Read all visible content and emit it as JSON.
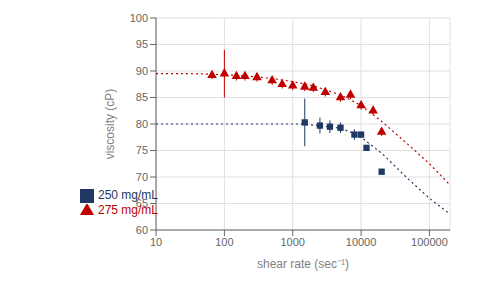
{
  "chart_data": {
    "type": "scatter",
    "xlabel": "shear rate (sec⁻¹)",
    "ylabel": "viscosity (cP)",
    "log": "x",
    "grid": true,
    "legend": "lower left",
    "xlim": [
      10,
      200000
    ],
    "ylim": [
      60,
      100
    ],
    "xticks": [
      10,
      100,
      1000,
      10000,
      100000
    ],
    "yticks": [
      60,
      65,
      70,
      75,
      80,
      85,
      90,
      95,
      100
    ],
    "series": [
      {
        "type": "line",
        "line_style": "dotted",
        "color": "#c00000",
        "x": [
          10,
          30,
          60,
          100,
          200,
          500,
          1000,
          2000,
          5000,
          10000,
          20000,
          50000,
          100000,
          200000
        ],
        "values": [
          89.5,
          89.5,
          89.4,
          89.3,
          89.1,
          88.6,
          88.0,
          87.2,
          85.5,
          83.5,
          80.5,
          76.0,
          72.5,
          68.5
        ]
      },
      {
        "type": "line",
        "line_style": "dotted",
        "color": "#1f3864",
        "x": [
          10,
          30,
          100,
          300,
          1000,
          1200,
          2000,
          5000,
          8000,
          10000,
          20000,
          50000,
          100000,
          200000
        ],
        "values": [
          80.0,
          80.0,
          80.0,
          80.0,
          80.0,
          80.0,
          79.8,
          79.2,
          78.2,
          77.5,
          74.5,
          69.5,
          66.0,
          63.0
        ]
      },
      {
        "name": "275 mg/mL",
        "type": "scatter",
        "marker": "triangle",
        "color": "#c00000",
        "x": [
          66,
          100,
          150,
          200,
          300,
          500,
          700,
          1000,
          1500,
          2000,
          3000,
          5000,
          7000,
          10000,
          15000,
          20000
        ],
        "values": [
          89.2,
          89.5,
          89.0,
          89.0,
          88.8,
          88.2,
          87.5,
          87.2,
          87.0,
          86.8,
          86.0,
          85.0,
          85.5,
          83.5,
          82.5,
          78.5
        ],
        "error_lo": [
          0.7,
          0.8,
          0.8,
          0.8,
          0.8,
          0.8,
          0.8,
          0.8,
          0.8,
          0.8,
          0.8,
          0.8,
          0.8,
          0.8,
          0.8,
          0.8
        ],
        "error_hi": [
          0.7,
          0.8,
          0.8,
          0.8,
          0.8,
          0.8,
          0.8,
          0.8,
          0.8,
          0.8,
          0.8,
          0.8,
          0.8,
          0.8,
          0.8,
          0.8
        ]
      },
      {
        "type": "errorbar",
        "color": "#c00000",
        "x": [
          100
        ],
        "values": [
          89.5
        ],
        "error_lo": [
          4.5
        ],
        "error_hi": [
          4.5
        ]
      },
      {
        "name": "250 mg/mL",
        "type": "scatter",
        "marker": "square",
        "color": "#1f3864",
        "x": [
          1500,
          2500,
          3500,
          5000,
          8000,
          10000,
          12000,
          20000
        ],
        "values": [
          80.3,
          79.7,
          79.5,
          79.3,
          78.0,
          78.0,
          75.5,
          71.0
        ],
        "error_lo": [
          4.5,
          1.5,
          1.2,
          1.0,
          1.0,
          0.5,
          0.5,
          0.5
        ],
        "error_hi": [
          4.5,
          1.5,
          1.2,
          1.0,
          1.0,
          0.5,
          0.5,
          0.5
        ]
      }
    ]
  }
}
